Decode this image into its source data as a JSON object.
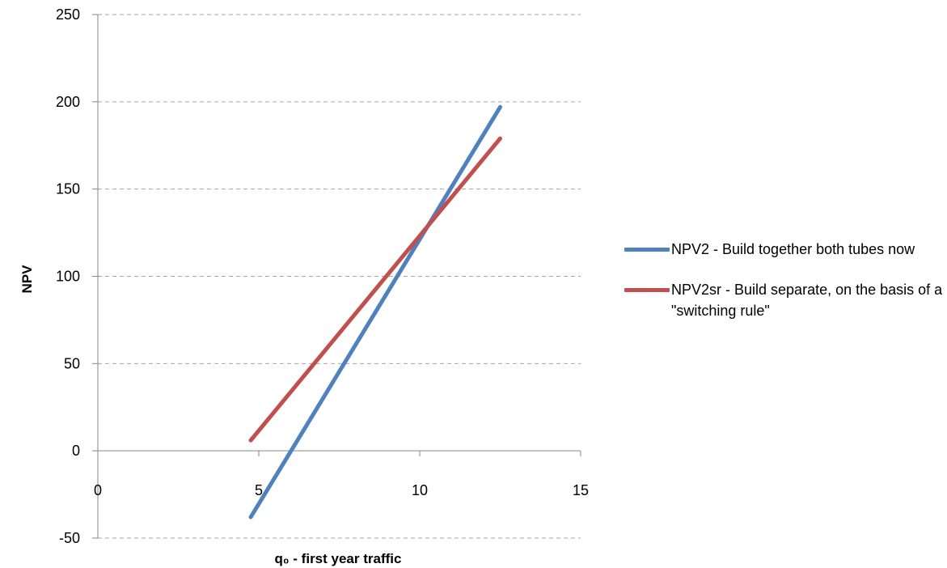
{
  "chart_data": {
    "type": "line",
    "title": "",
    "xlabel": "q₀ - first year traffic",
    "ylabel": "NPV",
    "xlim": [
      0,
      15
    ],
    "ylim": [
      -50,
      250
    ],
    "x_ticks": [
      0,
      5,
      10,
      15
    ],
    "y_ticks": [
      -50,
      0,
      50,
      100,
      150,
      200,
      250
    ],
    "grid": "horizontal dashed",
    "legend_position": "right",
    "series": [
      {
        "name": "NPV2 - Build together both tubes now",
        "color": "#4f81bd",
        "x": [
          4.75,
          12.5
        ],
        "y": [
          -38,
          197
        ]
      },
      {
        "name": "NPV2sr - Build separate, on the basis of a \"switching  rule\"",
        "color": "#c0504d",
        "x": [
          4.75,
          12.5
        ],
        "y": [
          6,
          179
        ]
      }
    ]
  }
}
